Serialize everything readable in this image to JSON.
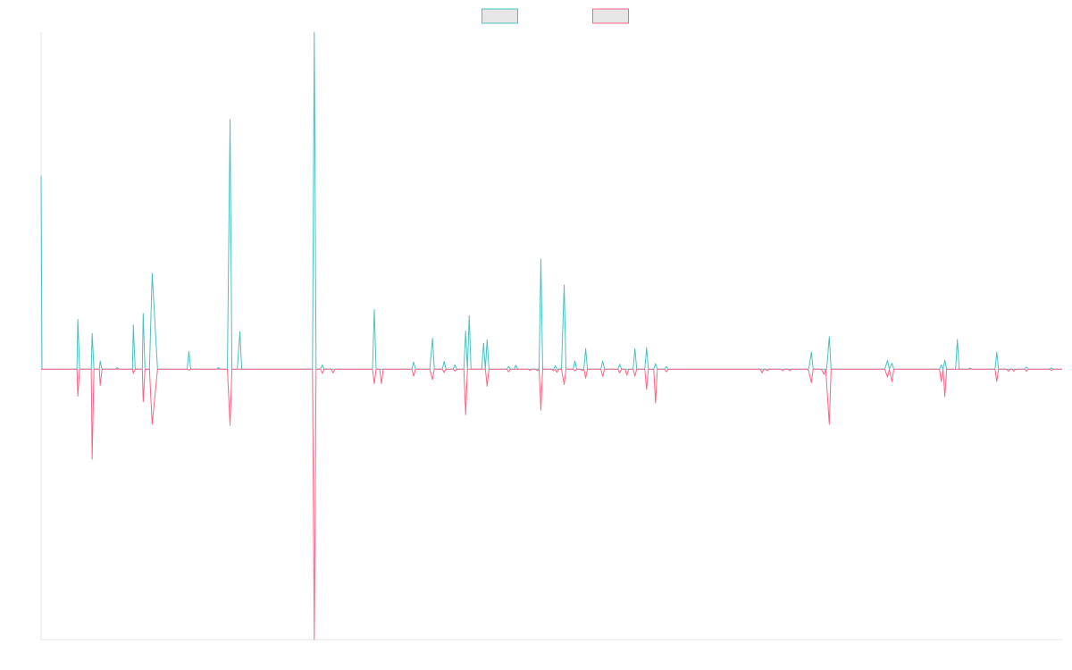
{
  "chart_data": {
    "type": "line",
    "title": "",
    "xlabel": "",
    "ylabel": "",
    "grid": false,
    "legend": {
      "position": "top-center",
      "entries": [
        {
          "name": "",
          "color": "#4bc0c0"
        },
        {
          "name": "",
          "color": "#ff6384"
        }
      ]
    },
    "ylim": [
      -100,
      124.6
    ],
    "xlim": [
      0,
      1140
    ],
    "series": [
      {
        "name": "",
        "color": "#4bc0c0",
        "points": [
          [
            0,
            71.5
          ],
          [
            1,
            0
          ],
          [
            40,
            0
          ],
          [
            41,
            18.4
          ],
          [
            43,
            0
          ],
          [
            56,
            0
          ],
          [
            57,
            13.2
          ],
          [
            59,
            0
          ],
          [
            65,
            0
          ],
          [
            66,
            3
          ],
          [
            68,
            0
          ],
          [
            83,
            0
          ],
          [
            85,
            0.6
          ],
          [
            87,
            0
          ],
          [
            102,
            0
          ],
          [
            103,
            16.4
          ],
          [
            105,
            0
          ],
          [
            113,
            0
          ],
          [
            114,
            20.6
          ],
          [
            116,
            0
          ],
          [
            121,
            0
          ],
          [
            124,
            35.5
          ],
          [
            130,
            0
          ],
          [
            163,
            0
          ],
          [
            165,
            6.6
          ],
          [
            167,
            0
          ],
          [
            196,
            0
          ],
          [
            198,
            0.6
          ],
          [
            200,
            0
          ],
          [
            208,
            0
          ],
          [
            211,
            92.4
          ],
          [
            213,
            0
          ],
          [
            219,
            0
          ],
          [
            222,
            13.8
          ],
          [
            224,
            0
          ],
          [
            303,
            0
          ],
          [
            305,
            124.6
          ],
          [
            307,
            0
          ],
          [
            312,
            0
          ],
          [
            314,
            1.6
          ],
          [
            316,
            0
          ],
          [
            370,
            0
          ],
          [
            372,
            22
          ],
          [
            374,
            0
          ],
          [
            414,
            0
          ],
          [
            416,
            2.6
          ],
          [
            418,
            0
          ],
          [
            434,
            0
          ],
          [
            437,
            11.5
          ],
          [
            439,
            0
          ],
          [
            448,
            0
          ],
          [
            450,
            2.9
          ],
          [
            452,
            0
          ],
          [
            460,
            0
          ],
          [
            462,
            1.6
          ],
          [
            464,
            0
          ],
          [
            472,
            0
          ],
          [
            474,
            14.1
          ],
          [
            476,
            0
          ],
          [
            478,
            19.8
          ],
          [
            480,
            0
          ],
          [
            492,
            0
          ],
          [
            494,
            9.6
          ],
          [
            496,
            0
          ],
          [
            498,
            10.9
          ],
          [
            500,
            0
          ],
          [
            520,
            0
          ],
          [
            522,
            1
          ],
          [
            524,
            0
          ],
          [
            528,
            0
          ],
          [
            530,
            1.4
          ],
          [
            532,
            0
          ],
          [
            556,
            0
          ],
          [
            558,
            40.8
          ],
          [
            560,
            0
          ],
          [
            572,
            0
          ],
          [
            574,
            1.2
          ],
          [
            576,
            0
          ],
          [
            581,
            0
          ],
          [
            584,
            31.2
          ],
          [
            586,
            0
          ],
          [
            594,
            0
          ],
          [
            596,
            3
          ],
          [
            598,
            0
          ],
          [
            606,
            0
          ],
          [
            608,
            7.6
          ],
          [
            610,
            0
          ],
          [
            625,
            0
          ],
          [
            627,
            3
          ],
          [
            629,
            0
          ],
          [
            644,
            0
          ],
          [
            646,
            1.8
          ],
          [
            648,
            0
          ],
          [
            661,
            0
          ],
          [
            663,
            7.6
          ],
          [
            665,
            0
          ],
          [
            674,
            0
          ],
          [
            676,
            8
          ],
          [
            678,
            0
          ],
          [
            684,
            0
          ],
          [
            686,
            2
          ],
          [
            688,
            0
          ],
          [
            696,
            0
          ],
          [
            698,
            1
          ],
          [
            700,
            0
          ],
          [
            857,
            0
          ],
          [
            860,
            6.3
          ],
          [
            862,
            0
          ],
          [
            877,
            0
          ],
          [
            880,
            12
          ],
          [
            882,
            0
          ],
          [
            942,
            0
          ],
          [
            945,
            3.3
          ],
          [
            947,
            0
          ],
          [
            950,
            2.2
          ],
          [
            952,
            0
          ],
          [
            1003,
            0
          ],
          [
            1005,
            1.6
          ],
          [
            1007,
            0
          ],
          [
            1009,
            3.3
          ],
          [
            1011,
            0
          ],
          [
            1021,
            0
          ],
          [
            1023,
            11
          ],
          [
            1025,
            0
          ],
          [
            1035,
            0
          ],
          [
            1037,
            0.4
          ],
          [
            1039,
            0
          ],
          [
            1065,
            0
          ],
          [
            1067,
            6.3
          ],
          [
            1069,
            0
          ],
          [
            1098,
            0
          ],
          [
            1100,
            0.8
          ],
          [
            1102,
            0
          ],
          [
            1126,
            0
          ],
          [
            1128,
            0.5
          ],
          [
            1130,
            0
          ],
          [
            1140,
            0
          ]
        ]
      },
      {
        "name": "",
        "color": "#ff6384",
        "points": [
          [
            0,
            0
          ],
          [
            40,
            0
          ],
          [
            41,
            -10
          ],
          [
            43,
            0
          ],
          [
            56,
            0
          ],
          [
            57,
            -33.3
          ],
          [
            59,
            0
          ],
          [
            65,
            0
          ],
          [
            66,
            -6
          ],
          [
            68,
            0
          ],
          [
            102,
            0
          ],
          [
            103,
            -1.6
          ],
          [
            105,
            0
          ],
          [
            113,
            0
          ],
          [
            114,
            -12
          ],
          [
            116,
            0
          ],
          [
            121,
            0
          ],
          [
            124,
            -20.4
          ],
          [
            130,
            0
          ],
          [
            163,
            0
          ],
          [
            165,
            -0.4
          ],
          [
            167,
            0
          ],
          [
            208,
            0
          ],
          [
            211,
            -20.8
          ],
          [
            213,
            0
          ],
          [
            303,
            0
          ],
          [
            305,
            -100
          ],
          [
            307,
            0
          ],
          [
            312,
            0
          ],
          [
            314,
            -1.6
          ],
          [
            316,
            0
          ],
          [
            324,
            0
          ],
          [
            326,
            -1.4
          ],
          [
            328,
            0
          ],
          [
            370,
            0
          ],
          [
            372,
            -5.4
          ],
          [
            374,
            0
          ],
          [
            378,
            0
          ],
          [
            380,
            -5.4
          ],
          [
            382,
            0
          ],
          [
            414,
            0
          ],
          [
            416,
            -2.6
          ],
          [
            418,
            0
          ],
          [
            434,
            0
          ],
          [
            437,
            -3.9
          ],
          [
            439,
            0
          ],
          [
            448,
            0
          ],
          [
            450,
            -1.2
          ],
          [
            452,
            0
          ],
          [
            460,
            0
          ],
          [
            462,
            -0.7
          ],
          [
            464,
            0
          ],
          [
            472,
            0
          ],
          [
            474,
            -16.8
          ],
          [
            476,
            0
          ],
          [
            496,
            0
          ],
          [
            498,
            -6.3
          ],
          [
            500,
            0
          ],
          [
            520,
            0
          ],
          [
            522,
            -1
          ],
          [
            524,
            0
          ],
          [
            544,
            0
          ],
          [
            546,
            -0.5
          ],
          [
            548,
            0
          ],
          [
            552,
            0
          ],
          [
            554,
            -0.5
          ],
          [
            556,
            0
          ],
          [
            558,
            -15.1
          ],
          [
            560,
            0
          ],
          [
            570,
            0
          ],
          [
            572,
            -0.6
          ],
          [
            574,
            0
          ],
          [
            576,
            -1.2
          ],
          [
            578,
            0
          ],
          [
            581,
            0
          ],
          [
            584,
            -5.7
          ],
          [
            586,
            0
          ],
          [
            594,
            0
          ],
          [
            596,
            -0.6
          ],
          [
            598,
            0
          ],
          [
            602,
            0
          ],
          [
            604,
            -0.6
          ],
          [
            606,
            0
          ],
          [
            608,
            -3.3
          ],
          [
            610,
            0
          ],
          [
            625,
            0
          ],
          [
            627,
            -2.7
          ],
          [
            629,
            0
          ],
          [
            644,
            0
          ],
          [
            646,
            -1.4
          ],
          [
            648,
            0
          ],
          [
            652,
            0
          ],
          [
            654,
            -2.3
          ],
          [
            656,
            0
          ],
          [
            661,
            0
          ],
          [
            663,
            -2.5
          ],
          [
            665,
            0
          ],
          [
            674,
            0
          ],
          [
            676,
            -7.5
          ],
          [
            678,
            0
          ],
          [
            684,
            0
          ],
          [
            686,
            -12.5
          ],
          [
            688,
            0
          ],
          [
            696,
            0
          ],
          [
            698,
            -1
          ],
          [
            700,
            0
          ],
          [
            803,
            0
          ],
          [
            805,
            -1.4
          ],
          [
            807,
            0
          ],
          [
            809,
            0
          ],
          [
            811,
            -0.6
          ],
          [
            813,
            0
          ],
          [
            826,
            0
          ],
          [
            828,
            -0.6
          ],
          [
            830,
            0
          ],
          [
            834,
            0
          ],
          [
            836,
            -0.6
          ],
          [
            838,
            0
          ],
          [
            855,
            0
          ],
          [
            857,
            -0.6
          ],
          [
            860,
            -5
          ],
          [
            862,
            0
          ],
          [
            871,
            0
          ],
          [
            874,
            -1.9
          ],
          [
            876,
            0
          ],
          [
            880,
            -20.4
          ],
          [
            882,
            0
          ],
          [
            942,
            0
          ],
          [
            945,
            -3
          ],
          [
            947,
            0
          ],
          [
            950,
            -4.6
          ],
          [
            952,
            0
          ],
          [
            1003,
            0
          ],
          [
            1005,
            -4.6
          ],
          [
            1007,
            0
          ],
          [
            1009,
            -10.1
          ],
          [
            1011,
            0
          ],
          [
            1065,
            0
          ],
          [
            1067,
            -4.6
          ],
          [
            1069,
            0
          ],
          [
            1078,
            0
          ],
          [
            1080,
            -0.8
          ],
          [
            1082,
            0
          ],
          [
            1084,
            0
          ],
          [
            1086,
            -0.8
          ],
          [
            1088,
            0
          ],
          [
            1098,
            0
          ],
          [
            1100,
            -0.8
          ],
          [
            1102,
            0
          ],
          [
            1126,
            0
          ],
          [
            1128,
            -0.5
          ],
          [
            1130,
            0
          ],
          [
            1140,
            0
          ]
        ]
      }
    ]
  }
}
